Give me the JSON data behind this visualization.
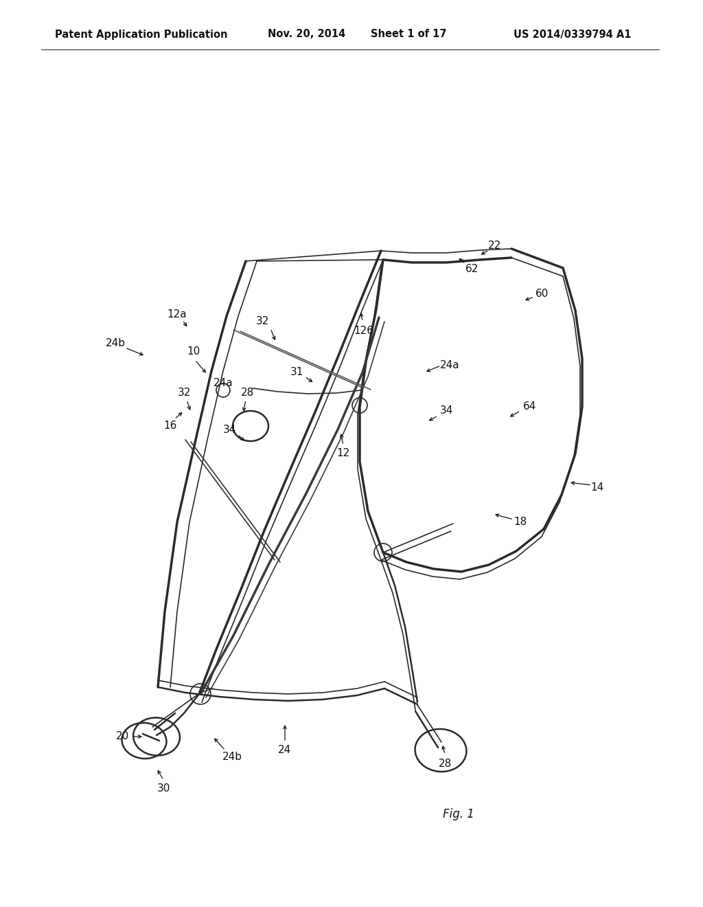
{
  "title": "Patent Application Publication",
  "date": "Nov. 20, 2014",
  "sheet": "Sheet 1 of 17",
  "patent_num": "US 2014/0339794 A1",
  "fig_label": "Fig. 1",
  "background": "#ffffff",
  "line_color": "#2a2a2a",
  "header_fontsize": 10.5,
  "label_fontsize": 11
}
